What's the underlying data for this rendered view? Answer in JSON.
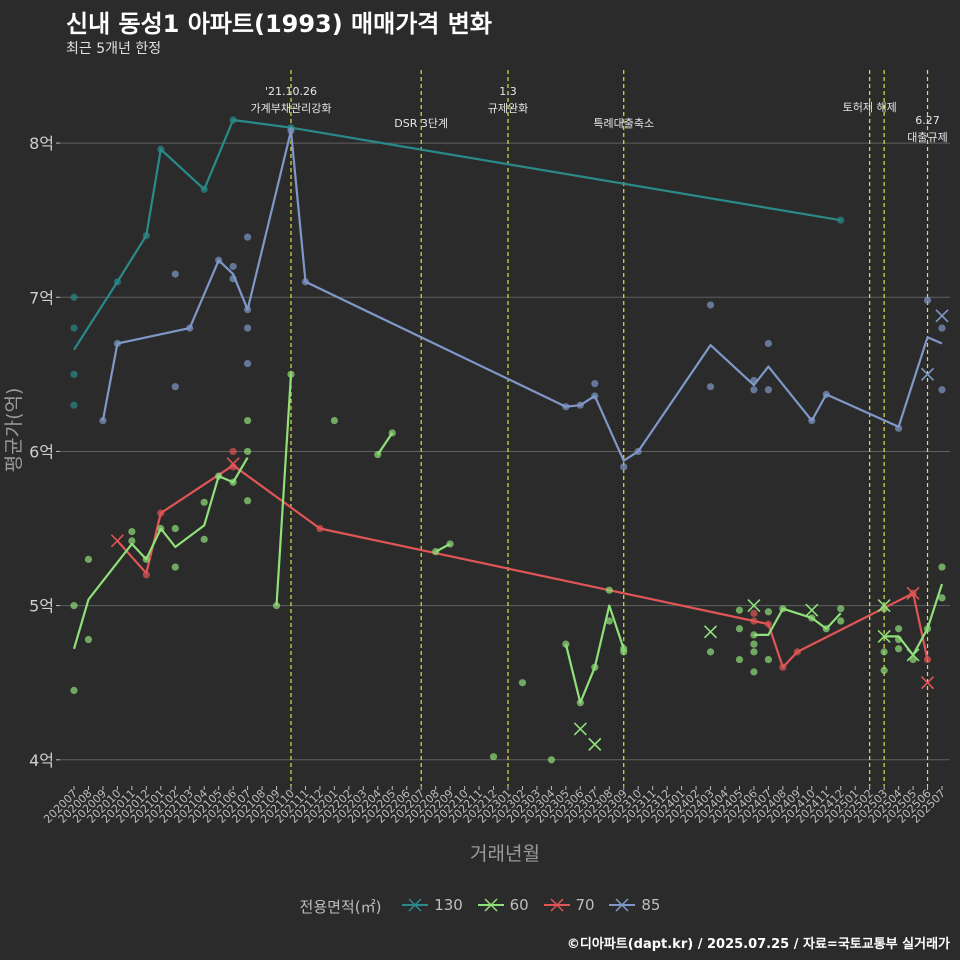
{
  "title": "신내 동성1 아파트(1993) 매매가격 변화",
  "subtitle": "최근 5개년 한정",
  "caption": "©디아파트(dapt.kr) / 2025.07.25 / 자료=국토교통부 실거래가",
  "legend": {
    "title": "전용면적(㎡)",
    "items": [
      {
        "label": "130",
        "color": "#2a8a8a"
      },
      {
        "label": "60",
        "color": "#90e07a"
      },
      {
        "label": "70",
        "color": "#e05555"
      },
      {
        "label": "85",
        "color": "#7f98c8"
      }
    ]
  },
  "chart_data": {
    "type": "line",
    "xlabel": "거래년월",
    "ylabel": "평균가(억)",
    "x_categories": [
      "202007",
      "202008",
      "202009",
      "202010",
      "202011",
      "202012",
      "202101",
      "202102",
      "202103",
      "202104",
      "202105",
      "202106",
      "202107",
      "202108",
      "202109",
      "202110",
      "202111",
      "202112",
      "202201",
      "202202",
      "202203",
      "202204",
      "202205",
      "202206",
      "202207",
      "202208",
      "202209",
      "202210",
      "202211",
      "202212",
      "202301",
      "202302",
      "202303",
      "202304",
      "202305",
      "202306",
      "202307",
      "202308",
      "202309",
      "202310",
      "202311",
      "202312",
      "202401",
      "202402",
      "202403",
      "202404",
      "202405",
      "202406",
      "202407",
      "202408",
      "202409",
      "202410",
      "202411",
      "202412",
      "202501",
      "202502",
      "202503",
      "202504",
      "202505",
      "202506",
      "202507"
    ],
    "y_ticks": [
      {
        "value": 4,
        "label": "4억"
      },
      {
        "value": 5,
        "label": "5억"
      },
      {
        "value": 6,
        "label": "6억"
      },
      {
        "value": 7,
        "label": "7억"
      },
      {
        "value": 8,
        "label": "8억"
      }
    ],
    "ylim": [
      3.83,
      8.5
    ],
    "grid": true,
    "legend_position": "bottom",
    "events": [
      {
        "x": "202110",
        "label": [
          "'21.10.26",
          "가계부채관리강화"
        ],
        "row": 0
      },
      {
        "x": "202207",
        "label": [
          "DSR 3단계"
        ],
        "row": 2
      },
      {
        "x": "202301",
        "label": [
          "1.3",
          "규제완화"
        ],
        "row": 0
      },
      {
        "x": "202309",
        "label": [
          "특례대출축소"
        ],
        "row": 2
      },
      {
        "x": "202502",
        "label": [
          "토허제 해제"
        ],
        "row": 1
      },
      {
        "x": "202503",
        "label": [],
        "row": 1
      },
      {
        "x": "202506",
        "label": [
          "6.27",
          "대출규제"
        ],
        "row": 1.8
      }
    ],
    "series": [
      {
        "name": "130",
        "color": "#2a8a8a",
        "line": [
          [
            "202007",
            6.66
          ],
          [
            "202010",
            7.1
          ],
          [
            "202012",
            7.4
          ],
          [
            "202101",
            7.96
          ],
          [
            "202104",
            7.7
          ],
          [
            "202106",
            8.15
          ],
          [
            "202110",
            8.1
          ],
          [
            "202412",
            7.5
          ]
        ],
        "points": [
          [
            "202007",
            7.0
          ],
          [
            "202007",
            6.8
          ],
          [
            "202007",
            6.5
          ],
          [
            "202007",
            6.3
          ],
          [
            "202010",
            7.1
          ],
          [
            "202012",
            7.4
          ],
          [
            "202101",
            7.96
          ],
          [
            "202104",
            7.7
          ],
          [
            "202106",
            8.15
          ],
          [
            "202110",
            8.1
          ],
          [
            "202412",
            7.5
          ]
        ],
        "crosses": []
      },
      {
        "name": "85",
        "color": "#7f98c8",
        "line": [
          [
            "202009",
            6.2
          ],
          [
            "202010",
            6.7
          ],
          [
            "202103",
            6.8
          ],
          [
            "202105",
            7.24
          ],
          [
            "202106",
            7.15
          ],
          [
            "202107",
            6.92
          ],
          [
            "202110",
            8.08
          ],
          [
            "202111",
            7.1
          ],
          [
            "202305",
            6.29
          ],
          [
            "202306",
            6.3
          ],
          [
            "202307",
            6.36
          ],
          [
            "202309",
            5.94
          ],
          [
            "202310",
            6.0
          ],
          [
            "202403",
            6.69
          ],
          [
            "202406",
            6.43
          ],
          [
            "202407",
            6.55
          ],
          [
            "202410",
            6.2
          ],
          [
            "202411",
            6.37
          ],
          [
            "202504",
            6.16
          ],
          [
            "202506",
            6.74
          ],
          [
            "202507",
            6.7
          ]
        ],
        "points": [
          [
            "202009",
            6.2
          ],
          [
            "202010",
            6.7
          ],
          [
            "202102",
            7.15
          ],
          [
            "202102",
            6.42
          ],
          [
            "202103",
            6.8
          ],
          [
            "202105",
            7.24
          ],
          [
            "202106",
            7.2
          ],
          [
            "202106",
            7.12
          ],
          [
            "202107",
            7.39
          ],
          [
            "202107",
            6.92
          ],
          [
            "202107",
            6.8
          ],
          [
            "202107",
            6.57
          ],
          [
            "202110",
            8.08
          ],
          [
            "202111",
            7.1
          ],
          [
            "202305",
            6.29
          ],
          [
            "202306",
            6.3
          ],
          [
            "202307",
            6.44
          ],
          [
            "202307",
            6.36
          ],
          [
            "202309",
            5.9
          ],
          [
            "202310",
            6.0
          ],
          [
            "202403",
            6.95
          ],
          [
            "202403",
            6.42
          ],
          [
            "202406",
            6.46
          ],
          [
            "202406",
            6.4
          ],
          [
            "202407",
            6.7
          ],
          [
            "202407",
            6.4
          ],
          [
            "202410",
            6.2
          ],
          [
            "202411",
            6.37
          ],
          [
            "202504",
            6.15
          ],
          [
            "202506",
            6.98
          ],
          [
            "202507",
            6.8
          ],
          [
            "202507",
            6.4
          ]
        ],
        "crosses": [
          [
            "202506",
            6.5
          ],
          [
            "202507",
            6.88
          ]
        ]
      },
      {
        "name": "70",
        "color": "#e05555",
        "line": [
          [
            "202010",
            5.42
          ],
          [
            "202012",
            5.21
          ],
          [
            "202101",
            5.6
          ],
          [
            "202106",
            5.91
          ],
          [
            "202112",
            5.5
          ],
          [
            "202406",
            4.9
          ],
          [
            "202407",
            4.88
          ],
          [
            "202408",
            4.6
          ],
          [
            "202409",
            4.7
          ],
          [
            "202505",
            5.08
          ],
          [
            "202506",
            4.65
          ]
        ],
        "points": [
          [
            "202012",
            5.2
          ],
          [
            "202101",
            5.6
          ],
          [
            "202106",
            6.0
          ],
          [
            "202106",
            5.9
          ],
          [
            "202112",
            5.5
          ],
          [
            "202406",
            4.9
          ],
          [
            "202406",
            4.95
          ],
          [
            "202407",
            4.88
          ],
          [
            "202408",
            4.6
          ],
          [
            "202409",
            4.7
          ],
          [
            "202505",
            5.08
          ],
          [
            "202506",
            4.65
          ]
        ],
        "crosses": [
          [
            "202010",
            5.42
          ],
          [
            "202106",
            5.92
          ],
          [
            "202505",
            5.08
          ],
          [
            "202506",
            4.5
          ]
        ]
      },
      {
        "name": "60",
        "color": "#90e07a",
        "line": [
          [
            "202007",
            4.72
          ],
          [
            "202008",
            5.04
          ],
          [
            "202011",
            5.4
          ],
          [
            "202012",
            5.3
          ],
          [
            "202101",
            5.5
          ],
          [
            "202102",
            5.38
          ],
          [
            "202104",
            5.52
          ],
          [
            "202105",
            5.84
          ],
          [
            "202106",
            5.8
          ],
          [
            "202107",
            5.96
          ]
        ],
        "segments": [
          [
            [
              "202109",
              5.0
            ],
            [
              "202110",
              6.5
            ]
          ],
          [
            [
              "202204",
              5.98
            ],
            [
              "202205",
              6.12
            ]
          ],
          [
            [
              "202208",
              5.35
            ],
            [
              "202209",
              5.4
            ]
          ],
          [
            [
              "202305",
              4.75
            ],
            [
              "202306",
              4.37
            ],
            [
              "202307",
              4.6
            ],
            [
              "202308",
              5.0
            ],
            [
              "202309",
              4.72
            ]
          ],
          [
            [
              "202406",
              4.81
            ],
            [
              "202407",
              4.81
            ],
            [
              "202408",
              4.98
            ],
            [
              "202410",
              4.92
            ],
            [
              "202411",
              4.85
            ],
            [
              "202412",
              4.95
            ]
          ],
          [
            [
              "202503",
              4.8
            ],
            [
              "202504",
              4.8
            ],
            [
              "202505",
              4.68
            ],
            [
              "202506",
              4.85
            ],
            [
              "202507",
              5.14
            ]
          ]
        ],
        "points": [
          [
            "202007",
            5.0
          ],
          [
            "202007",
            4.45
          ],
          [
            "202008",
            5.3
          ],
          [
            "202008",
            4.78
          ],
          [
            "202011",
            5.48
          ],
          [
            "202011",
            5.42
          ],
          [
            "202012",
            5.3
          ],
          [
            "202101",
            5.5
          ],
          [
            "202102",
            5.5
          ],
          [
            "202102",
            5.25
          ],
          [
            "202104",
            5.67
          ],
          [
            "202104",
            5.43
          ],
          [
            "202105",
            5.84
          ],
          [
            "202106",
            5.8
          ],
          [
            "202107",
            6.2
          ],
          [
            "202107",
            6.0
          ],
          [
            "202107",
            5.68
          ],
          [
            "202109",
            5.0
          ],
          [
            "202110",
            6.5
          ],
          [
            "202201",
            6.2
          ],
          [
            "202204",
            5.98
          ],
          [
            "202205",
            6.12
          ],
          [
            "202208",
            5.35
          ],
          [
            "202209",
            5.4
          ],
          [
            "202212",
            4.02
          ],
          [
            "202302",
            4.5
          ],
          [
            "202304",
            4.0
          ],
          [
            "202305",
            4.75
          ],
          [
            "202306",
            4.37
          ],
          [
            "202307",
            4.6
          ],
          [
            "202308",
            5.1
          ],
          [
            "202308",
            4.9
          ],
          [
            "202309",
            4.7
          ],
          [
            "202309",
            4.72
          ],
          [
            "202403",
            4.7
          ],
          [
            "202405",
            4.97
          ],
          [
            "202405",
            4.85
          ],
          [
            "202405",
            4.65
          ],
          [
            "202406",
            4.81
          ],
          [
            "202406",
            4.75
          ],
          [
            "202406",
            4.7
          ],
          [
            "202406",
            4.57
          ],
          [
            "202407",
            4.96
          ],
          [
            "202407",
            4.65
          ],
          [
            "202408",
            4.98
          ],
          [
            "202410",
            4.92
          ],
          [
            "202411",
            4.85
          ],
          [
            "202412",
            4.9
          ],
          [
            "202412",
            4.98
          ],
          [
            "202503",
            4.98
          ],
          [
            "202503",
            4.7
          ],
          [
            "202503",
            4.58
          ],
          [
            "202504",
            4.85
          ],
          [
            "202504",
            4.78
          ],
          [
            "202504",
            4.72
          ],
          [
            "202505",
            4.65
          ],
          [
            "202506",
            4.85
          ],
          [
            "202507",
            5.25
          ],
          [
            "202507",
            5.05
          ]
        ],
        "crosses": [
          [
            "202306",
            4.2
          ],
          [
            "202307",
            4.1
          ],
          [
            "202403",
            4.83
          ],
          [
            "202406",
            5.0
          ],
          [
            "202410",
            4.97
          ],
          [
            "202503",
            5.0
          ],
          [
            "202503",
            4.8
          ],
          [
            "202505",
            4.68
          ]
        ]
      }
    ]
  }
}
